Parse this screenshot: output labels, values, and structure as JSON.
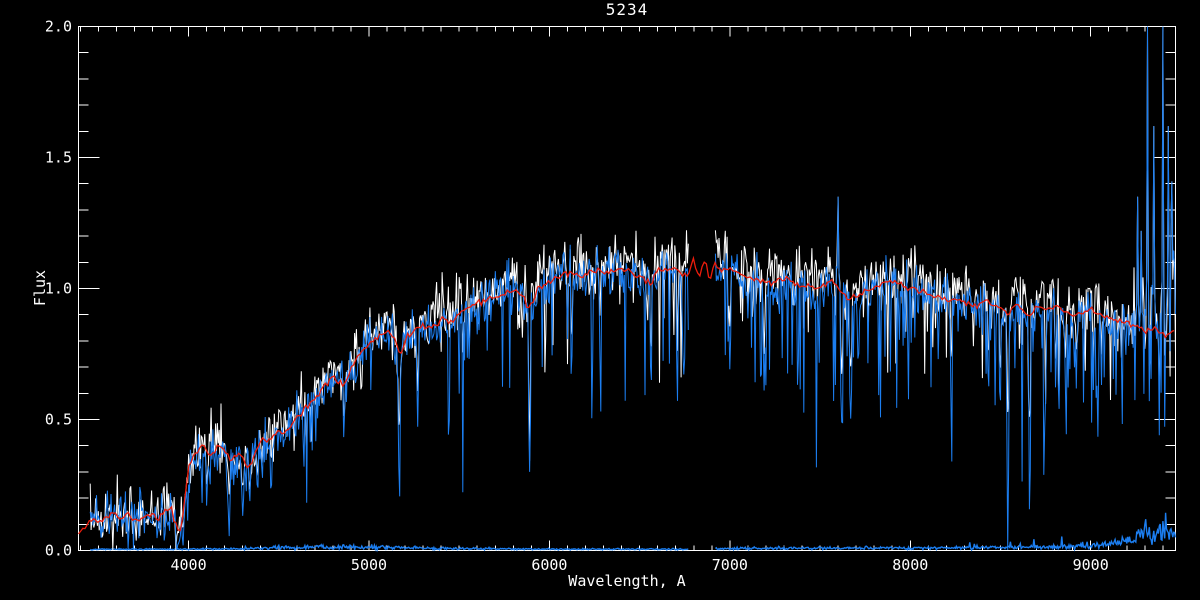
{
  "window": {
    "background": "#000000"
  },
  "chart_data": {
    "type": "line",
    "title": "5234",
    "xlabel": "Wavelength, A",
    "ylabel": "Flux",
    "xlim": [
      3390,
      9470
    ],
    "ylim": [
      0.0,
      2.0
    ],
    "x_major_ticks": [
      4000,
      5000,
      6000,
      7000,
      8000,
      9000
    ],
    "x_tick_labels": [
      "4000",
      "5000",
      "6000",
      "7000",
      "8000",
      "9000"
    ],
    "x_minor_interval": 100,
    "y_major_ticks": [
      0.0,
      0.5,
      1.0,
      1.5,
      2.0
    ],
    "y_tick_labels": [
      "0.0",
      "0.5",
      "1.0",
      "1.5",
      "2.0"
    ],
    "y_minor_interval": 0.1,
    "grid": false,
    "legend": "none",
    "colors": {
      "background": "#000000",
      "frame": "#ffffff",
      "observed_spectrum": "#1c7ef0",
      "raw_spectrum": "#ffffff",
      "model_fit": "#ec1c0c",
      "error_spectrum": "#1c7ef0"
    },
    "sample_step": 5,
    "data_range": [
      3455,
      9470
    ],
    "gap": [
      6770,
      6916
    ],
    "model_anchors": [
      [
        3390,
        0.07
      ],
      [
        3430,
        0.1
      ],
      [
        3470,
        0.12
      ],
      [
        3510,
        0.11
      ],
      [
        3550,
        0.13
      ],
      [
        3590,
        0.14
      ],
      [
        3630,
        0.12
      ],
      [
        3670,
        0.14
      ],
      [
        3710,
        0.11
      ],
      [
        3750,
        0.13
      ],
      [
        3790,
        0.14
      ],
      [
        3830,
        0.12
      ],
      [
        3870,
        0.15
      ],
      [
        3900,
        0.17
      ],
      [
        3925,
        0.1
      ],
      [
        3955,
        0.07
      ],
      [
        3980,
        0.2
      ],
      [
        4000,
        0.33
      ],
      [
        4040,
        0.37
      ],
      [
        4080,
        0.41
      ],
      [
        4120,
        0.36
      ],
      [
        4160,
        0.4
      ],
      [
        4200,
        0.38
      ],
      [
        4240,
        0.34
      ],
      [
        4280,
        0.37
      ],
      [
        4310,
        0.34
      ],
      [
        4340,
        0.31
      ],
      [
        4370,
        0.38
      ],
      [
        4410,
        0.43
      ],
      [
        4450,
        0.41
      ],
      [
        4490,
        0.46
      ],
      [
        4530,
        0.44
      ],
      [
        4570,
        0.48
      ],
      [
        4610,
        0.52
      ],
      [
        4650,
        0.55
      ],
      [
        4700,
        0.58
      ],
      [
        4750,
        0.62
      ],
      [
        4800,
        0.66
      ],
      [
        4861,
        0.63
      ],
      [
        4900,
        0.7
      ],
      [
        4950,
        0.75
      ],
      [
        5000,
        0.79
      ],
      [
        5050,
        0.81
      ],
      [
        5100,
        0.84
      ],
      [
        5140,
        0.81
      ],
      [
        5175,
        0.74
      ],
      [
        5210,
        0.81
      ],
      [
        5250,
        0.84
      ],
      [
        5300,
        0.86
      ],
      [
        5350,
        0.85
      ],
      [
        5400,
        0.88
      ],
      [
        5450,
        0.87
      ],
      [
        5500,
        0.9
      ],
      [
        5550,
        0.92
      ],
      [
        5600,
        0.94
      ],
      [
        5650,
        0.95
      ],
      [
        5700,
        0.97
      ],
      [
        5750,
        0.98
      ],
      [
        5800,
        1.0
      ],
      [
        5850,
        0.97
      ],
      [
        5890,
        0.92
      ],
      [
        5930,
        0.99
      ],
      [
        5980,
        1.02
      ],
      [
        6030,
        1.04
      ],
      [
        6080,
        1.05
      ],
      [
        6130,
        1.06
      ],
      [
        6180,
        1.04
      ],
      [
        6230,
        1.06
      ],
      [
        6280,
        1.07
      ],
      [
        6330,
        1.06
      ],
      [
        6380,
        1.08
      ],
      [
        6430,
        1.07
      ],
      [
        6480,
        1.05
      ],
      [
        6530,
        1.04
      ],
      [
        6563,
        1.01
      ],
      [
        6600,
        1.06
      ],
      [
        6650,
        1.08
      ],
      [
        6700,
        1.07
      ],
      [
        6740,
        1.06
      ],
      [
        6770,
        1.05
      ],
      [
        6800,
        1.11
      ],
      [
        6830,
        1.04
      ],
      [
        6860,
        1.11
      ],
      [
        6890,
        1.04
      ],
      [
        6920,
        1.1
      ],
      [
        6950,
        1.06
      ],
      [
        6980,
        1.08
      ],
      [
        7010,
        1.07
      ],
      [
        7060,
        1.06
      ],
      [
        7110,
        1.04
      ],
      [
        7160,
        1.03
      ],
      [
        7210,
        1.02
      ],
      [
        7260,
        1.03
      ],
      [
        7310,
        1.04
      ],
      [
        7360,
        1.02
      ],
      [
        7410,
        1.01
      ],
      [
        7460,
        1.0
      ],
      [
        7510,
        1.01
      ],
      [
        7560,
        1.03
      ],
      [
        7610,
        1.0
      ],
      [
        7660,
        0.96
      ],
      [
        7710,
        0.97
      ],
      [
        7760,
        0.99
      ],
      [
        7810,
        1.01
      ],
      [
        7860,
        1.02
      ],
      [
        7910,
        1.03
      ],
      [
        7960,
        1.01
      ],
      [
        8010,
        1.0
      ],
      [
        8060,
        0.99
      ],
      [
        8110,
        0.97
      ],
      [
        8160,
        0.96
      ],
      [
        8210,
        0.95
      ],
      [
        8260,
        0.96
      ],
      [
        8310,
        0.95
      ],
      [
        8360,
        0.93
      ],
      [
        8410,
        0.95
      ],
      [
        8460,
        0.94
      ],
      [
        8510,
        0.92
      ],
      [
        8542,
        0.9
      ],
      [
        8580,
        0.94
      ],
      [
        8620,
        0.92
      ],
      [
        8662,
        0.89
      ],
      [
        8700,
        0.93
      ],
      [
        8750,
        0.92
      ],
      [
        8800,
        0.93
      ],
      [
        8850,
        0.91
      ],
      [
        8900,
        0.9
      ],
      [
        8950,
        0.91
      ],
      [
        9000,
        0.92
      ],
      [
        9050,
        0.9
      ],
      [
        9100,
        0.89
      ],
      [
        9150,
        0.88
      ],
      [
        9200,
        0.87
      ],
      [
        9250,
        0.86
      ],
      [
        9300,
        0.84
      ],
      [
        9350,
        0.85
      ],
      [
        9400,
        0.83
      ],
      [
        9440,
        0.82
      ],
      [
        9470,
        0.84
      ]
    ],
    "absorption_lines": [
      [
        3934,
        0.02,
        8
      ],
      [
        3969,
        0.04,
        8
      ],
      [
        4101,
        0.16,
        6
      ],
      [
        4227,
        0.15,
        6
      ],
      [
        4300,
        0.17,
        10
      ],
      [
        4340,
        0.2,
        6
      ],
      [
        4383,
        0.22,
        6
      ],
      [
        4861,
        0.42,
        6
      ],
      [
        5167,
        0.3,
        9
      ],
      [
        5270,
        0.48,
        7
      ],
      [
        5890,
        0.3,
        9
      ],
      [
        6122,
        0.62,
        6
      ],
      [
        6280,
        0.75,
        6
      ],
      [
        6563,
        0.6,
        6
      ],
      [
        6710,
        0.55,
        6
      ],
      [
        7000,
        0.7,
        8
      ],
      [
        7190,
        0.62,
        8
      ],
      [
        7620,
        0.48,
        10
      ],
      [
        7670,
        0.5,
        10
      ],
      [
        8227,
        0.55,
        6
      ],
      [
        8433,
        0.58,
        6
      ],
      [
        8498,
        0.5,
        6
      ],
      [
        8542,
        0.22,
        8
      ],
      [
        8662,
        0.2,
        8
      ],
      [
        8750,
        0.58,
        6
      ],
      [
        8806,
        0.6,
        6
      ],
      [
        8860,
        0.62,
        6
      ],
      [
        8920,
        0.63,
        6
      ],
      [
        9015,
        0.62,
        6
      ],
      [
        9060,
        0.65,
        6
      ]
    ],
    "emission_spikes": [
      [
        7600,
        1.35
      ],
      [
        9260,
        1.35
      ],
      [
        9280,
        1.22
      ],
      [
        9315,
        2.0
      ],
      [
        9350,
        1.62
      ],
      [
        9400,
        2.0
      ],
      [
        9430,
        1.62
      ],
      [
        9448,
        1.7
      ],
      [
        9462,
        1.3
      ]
    ],
    "forest": {
      "prob": 0.13,
      "depth_min": 0.06,
      "depth_max": 0.45,
      "strong_prob": 0.05,
      "strong_depth": 0.72,
      "regions": [
        {
          "range": [
            4000,
            4750
          ],
          "factor": 1.4
        },
        {
          "range": [
            8300,
            9470
          ],
          "factor": 1.5
        }
      ]
    },
    "red_end_noise": {
      "start": 9050,
      "sigma": 0.14
    },
    "error_anchors": [
      [
        3455,
        0.004
      ],
      [
        4200,
        0.006
      ],
      [
        4700,
        0.014
      ],
      [
        5100,
        0.012
      ],
      [
        5500,
        0.007
      ],
      [
        6000,
        0.005
      ],
      [
        6760,
        0.005
      ],
      [
        6930,
        0.008
      ],
      [
        7600,
        0.009
      ],
      [
        8200,
        0.01
      ],
      [
        8700,
        0.012
      ],
      [
        9000,
        0.018
      ],
      [
        9150,
        0.03
      ],
      [
        9250,
        0.045
      ],
      [
        9310,
        0.085
      ],
      [
        9355,
        0.045
      ],
      [
        9400,
        0.075
      ],
      [
        9440,
        0.055
      ],
      [
        9470,
        0.065
      ]
    ],
    "series": [
      {
        "name": "raw-spectrum",
        "role": "raw",
        "seed": 7,
        "lift": 1.045,
        "noise": 0.05,
        "forest_factor": 0.9,
        "shallow_lines": true
      },
      {
        "name": "observed-spectrum",
        "role": "observed",
        "seed": 3,
        "lift": 1.0,
        "noise": 0.045,
        "forest_factor": 1.0,
        "shallow_lines": false
      },
      {
        "name": "error-spectrum",
        "role": "error",
        "seed": 5
      },
      {
        "name": "model-fit",
        "role": "model",
        "seed": 11,
        "jitter": 0.006
      }
    ]
  }
}
